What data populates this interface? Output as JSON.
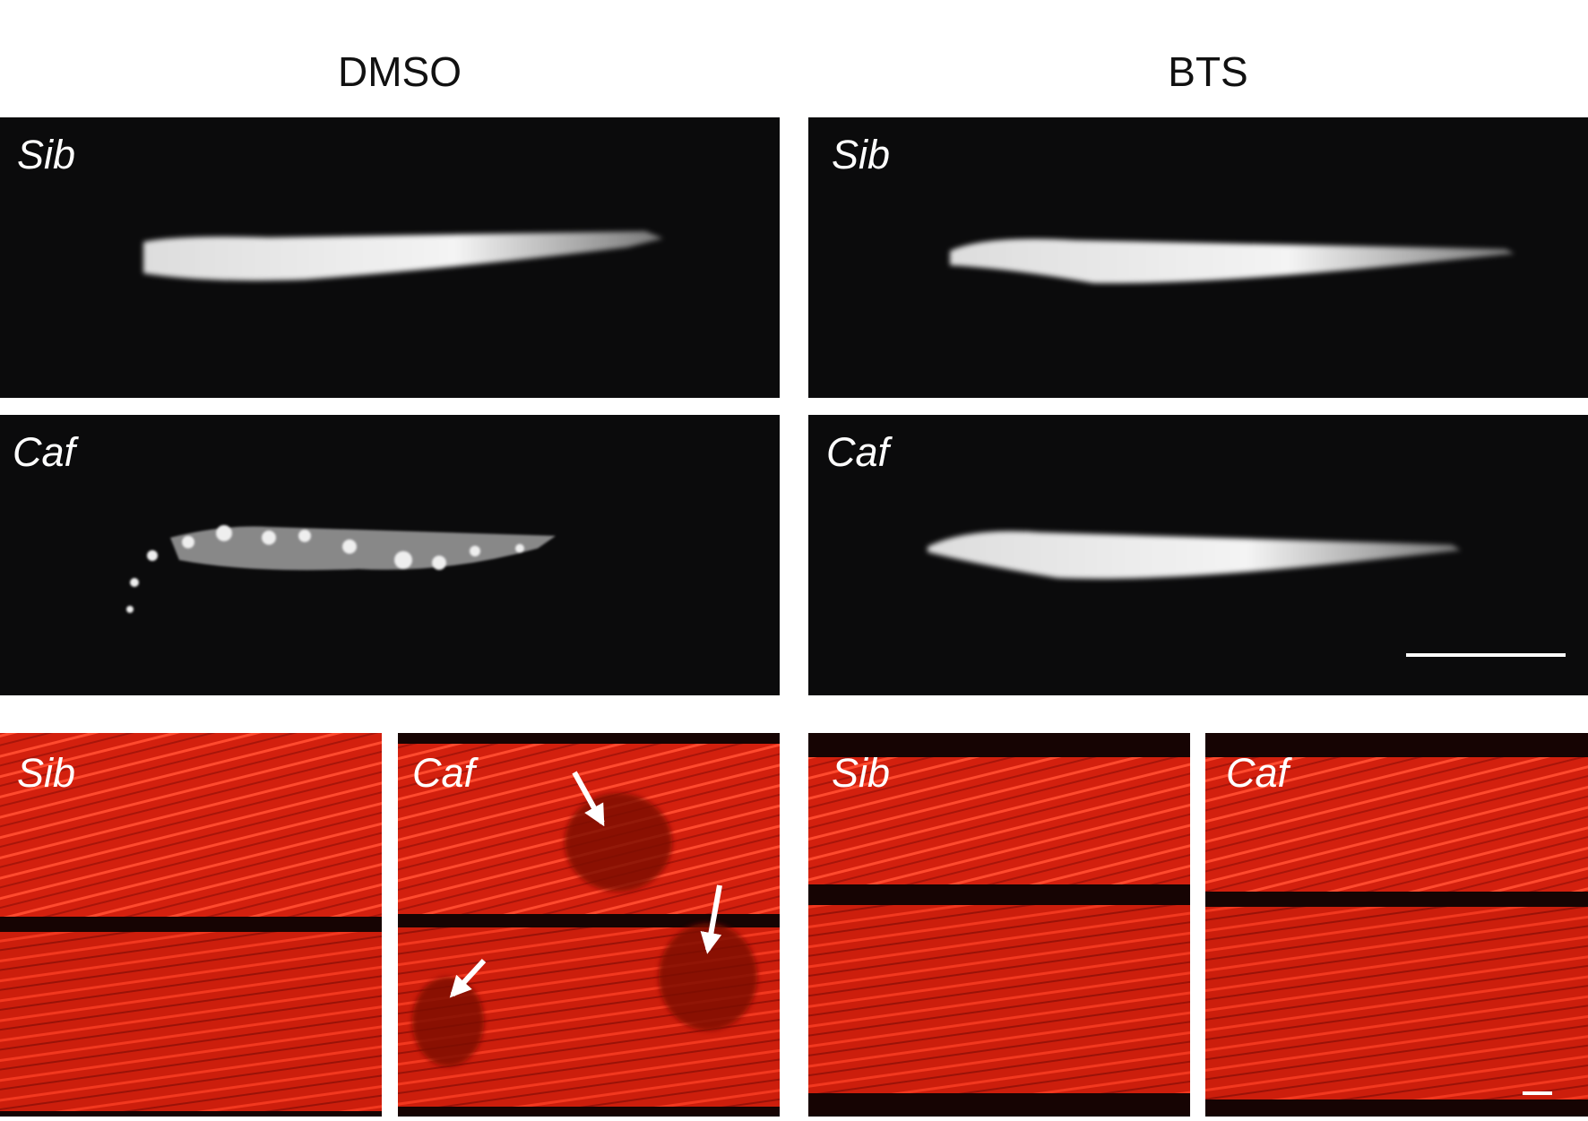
{
  "header": {
    "columns": [
      "DMSO",
      "BTS"
    ]
  },
  "panels": [
    {
      "label": "Sib"
    },
    {
      "label": "Sib"
    },
    {
      "label": "Caf"
    },
    {
      "label": "Caf"
    },
    {
      "label": "Sib"
    },
    {
      "label": "Caf"
    },
    {
      "label": "Sib"
    },
    {
      "label": "Caf"
    }
  ]
}
